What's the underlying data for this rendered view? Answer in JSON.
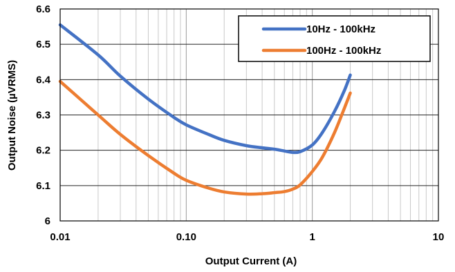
{
  "chart_data": {
    "type": "line",
    "title": "",
    "xlabel": "Output Current (A)",
    "ylabel": "Output Noise (µVRMS)",
    "xscale": "log",
    "xlim": [
      0.01,
      10
    ],
    "ylim": [
      6.0,
      6.6
    ],
    "x_tick_labels": [
      "0.01",
      "0.10",
      "1",
      "10"
    ],
    "x_tick_values": [
      0.01,
      0.1,
      1,
      10
    ],
    "y_tick_labels": [
      "6",
      "6.1",
      "6.2",
      "6.3",
      "6.4",
      "6.5",
      "6.6"
    ],
    "y_tick_values": [
      6.0,
      6.1,
      6.2,
      6.3,
      6.4,
      6.5,
      6.6
    ],
    "grid": true,
    "legend_position": "top-right",
    "series": [
      {
        "name": "10Hz - 100kHz",
        "color": "#4472C4",
        "points": [
          [
            0.01,
            6.555
          ],
          [
            0.02,
            6.47
          ],
          [
            0.03,
            6.41
          ],
          [
            0.05,
            6.345
          ],
          [
            0.08,
            6.293
          ],
          [
            0.1,
            6.272
          ],
          [
            0.15,
            6.245
          ],
          [
            0.2,
            6.228
          ],
          [
            0.3,
            6.213
          ],
          [
            0.4,
            6.207
          ],
          [
            0.5,
            6.203
          ],
          [
            0.6,
            6.198
          ],
          [
            0.7,
            6.194
          ],
          [
            0.8,
            6.196
          ],
          [
            1.0,
            6.215
          ],
          [
            1.2,
            6.25
          ],
          [
            1.5,
            6.31
          ],
          [
            1.8,
            6.37
          ],
          [
            2.0,
            6.413
          ]
        ]
      },
      {
        "name": "100Hz - 100kHz",
        "color": "#ED7D31",
        "points": [
          [
            0.01,
            6.395
          ],
          [
            0.02,
            6.3
          ],
          [
            0.03,
            6.245
          ],
          [
            0.05,
            6.185
          ],
          [
            0.08,
            6.135
          ],
          [
            0.1,
            6.115
          ],
          [
            0.15,
            6.093
          ],
          [
            0.2,
            6.082
          ],
          [
            0.3,
            6.076
          ],
          [
            0.4,
            6.077
          ],
          [
            0.5,
            6.08
          ],
          [
            0.6,
            6.083
          ],
          [
            0.7,
            6.09
          ],
          [
            0.8,
            6.102
          ],
          [
            1.0,
            6.14
          ],
          [
            1.2,
            6.18
          ],
          [
            1.5,
            6.25
          ],
          [
            1.8,
            6.32
          ],
          [
            2.0,
            6.362
          ]
        ]
      }
    ]
  }
}
